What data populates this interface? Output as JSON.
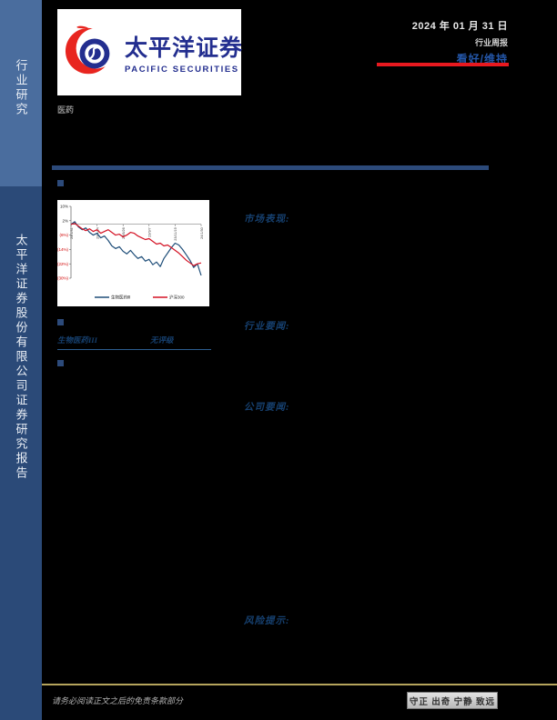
{
  "sidebar": {
    "top_label": "行业研究",
    "bottom_label": "太平洋证券股份有限公司证券研究报告",
    "top_bg": "#4a6d9e",
    "bottom_bg": "#2b4a78"
  },
  "header": {
    "logo_cn": "太平洋证券",
    "logo_en": "PACIFIC SECURITIES",
    "date": "2024 年 01 月 31 日",
    "report_type": "行业周报",
    "rating": "看好/维持",
    "industry": "医药",
    "accent_red": "#e8191f",
    "rating_color": "#2456a8"
  },
  "summary_labels": {
    "market": "市场表现:",
    "industry_news": "行业要闻:",
    "company_news": "公司要闻:",
    "risk": "风险提示:"
  },
  "rating_table": {
    "name": "生物医药III",
    "rating": "无评级"
  },
  "footer": {
    "disclaimer": "请务必阅读正文之后的免责条款部分",
    "motto": "守正 出奇 宁静 致远"
  },
  "chart_data": {
    "type": "line",
    "title": "",
    "x_labels": [
      "23/1/31",
      "23/4/14",
      "23/6/26",
      "23/9/7",
      "23/11/19",
      "24/1/30"
    ],
    "y_ticks": [
      "10%",
      "2%",
      "(6%)",
      "(14%)",
      "(22%)",
      "(30%)"
    ],
    "y_tick_values": [
      10,
      2,
      -6,
      -14,
      -22,
      -30
    ],
    "ylim": [
      -30,
      10
    ],
    "grid": "zero-line only",
    "legend_position": "bottom",
    "series": [
      {
        "name": "生物医药Ⅲ",
        "color": "#1f4e79",
        "values": [
          0,
          1.5,
          -1.5,
          -3,
          -2,
          -4.5,
          -6,
          -5,
          -7.5,
          -6.5,
          -9,
          -12,
          -13.5,
          -12.5,
          -15,
          -16.5,
          -14.5,
          -17,
          -19,
          -18,
          -20.5,
          -19.5,
          -22.5,
          -21,
          -23.5,
          -19,
          -16,
          -13,
          -10.5,
          -11.5,
          -14,
          -17,
          -20,
          -24,
          -22,
          -28.5
        ]
      },
      {
        "name": "沪深300",
        "color": "#d41224",
        "values": [
          0,
          0.5,
          -1,
          -2.5,
          -3.5,
          -2.5,
          -4,
          -3,
          -5,
          -4,
          -3,
          -4.5,
          -6,
          -5.5,
          -7,
          -6,
          -4.5,
          -5,
          -6.5,
          -7.5,
          -8.5,
          -8,
          -9.5,
          -11,
          -10.5,
          -12,
          -11.5,
          -13,
          -14.5,
          -16,
          -18,
          -20,
          -21.5,
          -23,
          -22,
          -21.5
        ]
      }
    ]
  }
}
